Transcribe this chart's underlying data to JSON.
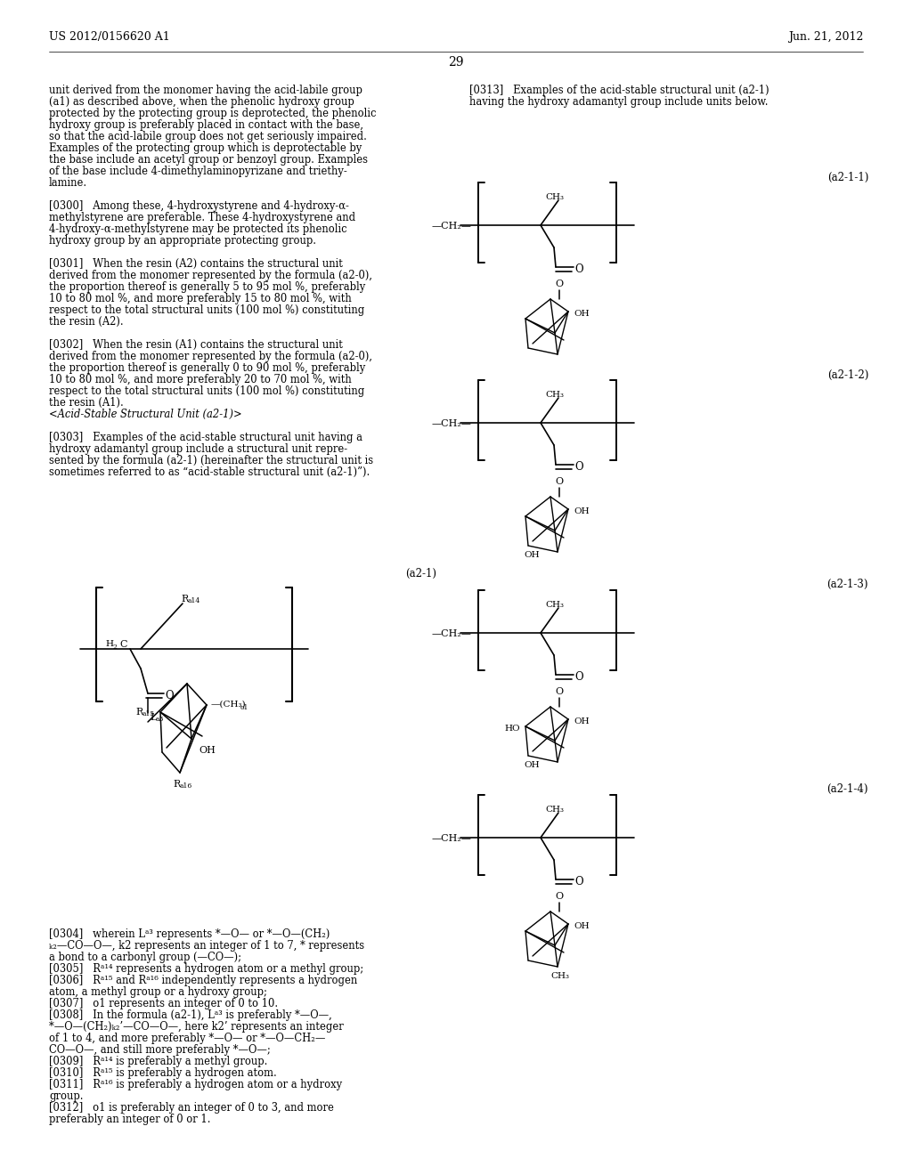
{
  "background_color": "#ffffff",
  "header_left": "US 2012/0156620 A1",
  "header_right": "Jun. 21, 2012",
  "page_number": "29",
  "left_col_lines": [
    "unit derived from the monomer having the acid-labile group",
    "(a1) as described above, when the phenolic hydroxy group",
    "protected by the protecting group is deprotected, the phenolic",
    "hydroxy group is preferably placed in contact with the base,",
    "so that the acid-labile group does not get seriously impaired.",
    "Examples of the protecting group which is deprotectable by",
    "the base include an acetyl group or benzoyl group. Examples",
    "of the base include 4-dimethylaminopyrizane and triethy-",
    "lamine.",
    "",
    "[0300]   Among these, 4-hydroxystyrene and 4-hydroxy-α-",
    "methylstyrene are preferable. These 4-hydroxystyrene and",
    "4-hydroxy-α-methylstyrene may be protected its phenolic",
    "hydroxy group by an appropriate protecting group.",
    "",
    "[0301]   When the resin (A2) contains the structural unit",
    "derived from the monomer represented by the formula (a2-0),",
    "the proportion thereof is generally 5 to 95 mol %, preferably",
    "10 to 80 mol %, and more preferably 15 to 80 mol %, with",
    "respect to the total structural units (100 mol %) constituting",
    "the resin (A2).",
    "",
    "[0302]   When the resin (A1) contains the structural unit",
    "derived from the monomer represented by the formula (a2-0),",
    "the proportion thereof is generally 0 to 90 mol %, preferably",
    "10 to 80 mol %, and more preferably 20 to 70 mol %, with",
    "respect to the total structural units (100 mol %) constituting",
    "the resin (A1).",
    "<Acid-Stable Structural Unit (a2-1)>",
    "",
    "[0303]   Examples of the acid-stable structural unit having a",
    "hydroxy adamantyl group include a structural unit repre-",
    "sented by the formula (a2-1) (hereinafter the structural unit is",
    "sometimes referred to as “acid-stable structural unit (a2-1)”)."
  ],
  "right_col_lines": [
    "[0313]   Examples of the acid-stable structural unit (a2-1)",
    "having the hydroxy adamantyl group include units below."
  ],
  "bottom_lines": [
    "[0304]   wherein Lᵃ³ represents *—O— or *—O—(CH₂)",
    "ₖ₂—CO—O—, k2 represents an integer of 1 to 7, * represents",
    "a bond to a carbonyl group (—CO—);",
    "[0305]   Rᵃ¹⁴ represents a hydrogen atom or a methyl group;",
    "[0306]   Rᵃ¹⁵ and Rᵃ¹⁶ independently represents a hydrogen",
    "atom, a methyl group or a hydroxy group;",
    "[0307]   o1 represents an integer of 0 to 10.",
    "[0308]   In the formula (a2-1), Lᵃ³ is preferably *—O—,",
    "*—O—(CH₂)ₖ₂’—CO—O—, here k2’ represents an integer",
    "of 1 to 4, and more preferably *—O— or *—O—CH₂—",
    "CO—O—, and still more preferably *—O—;",
    "[0309]   Rᵃ¹⁴ is preferably a methyl group.",
    "[0310]   Rᵃ¹⁵ is preferably a hydrogen atom.",
    "[0311]   Rᵃ¹⁶ is preferably a hydrogen atom or a hydroxy",
    "group.",
    "[0312]   o1 is preferably an integer of 0 to 3, and more",
    "preferably an integer of 0 or 1."
  ]
}
